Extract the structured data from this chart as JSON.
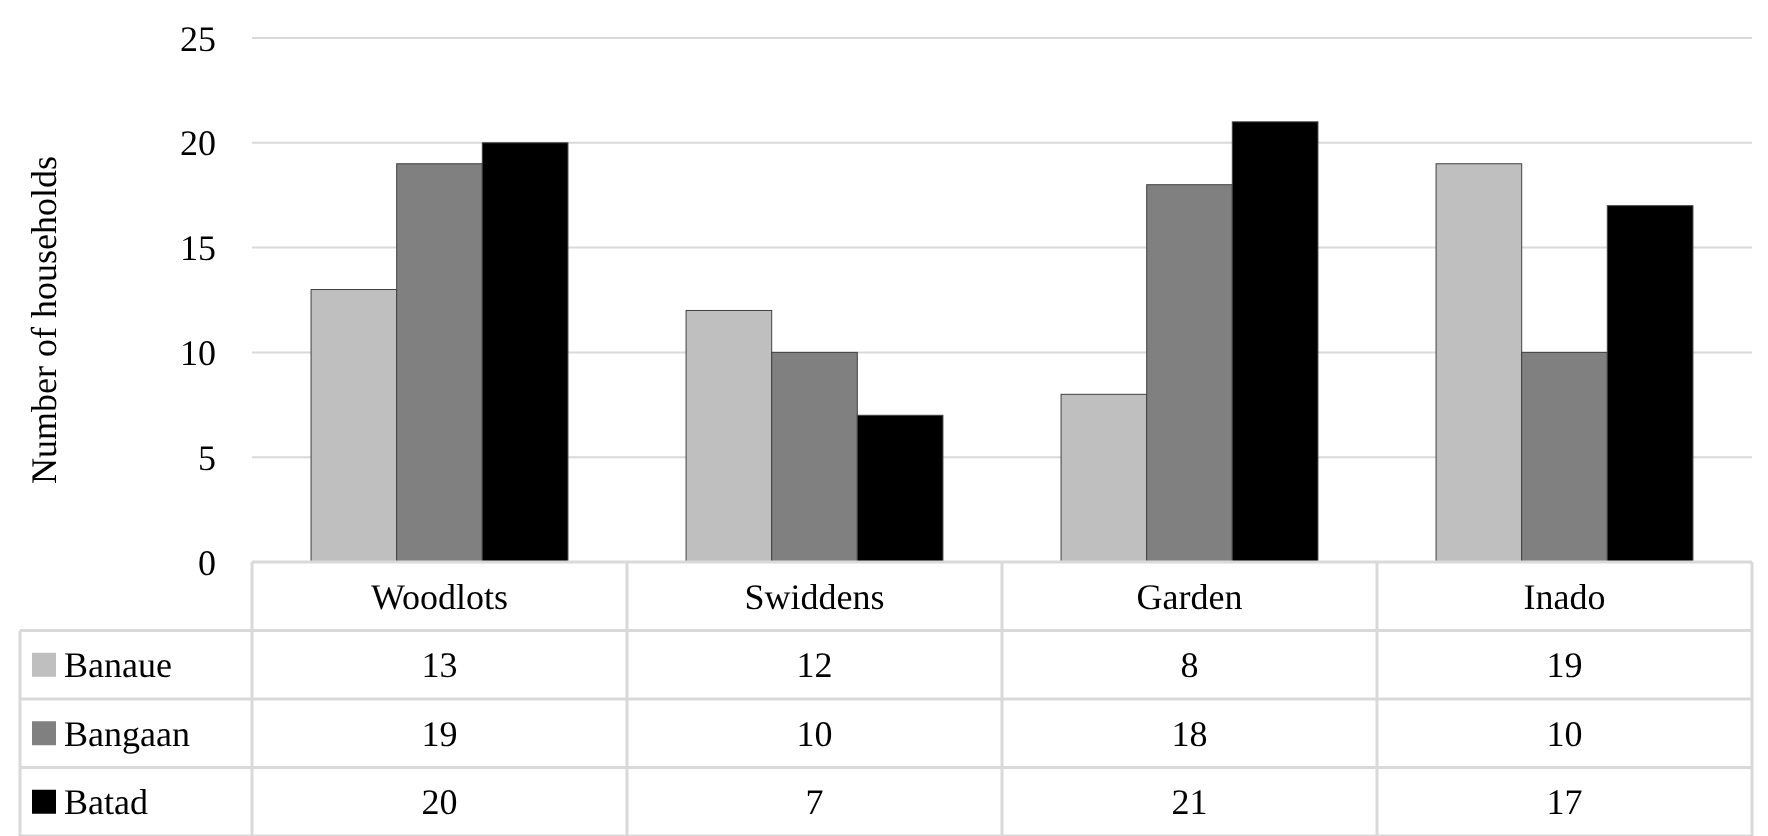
{
  "chart_data": {
    "type": "bar",
    "ylabel": "Number of households",
    "categories": [
      "Woodlots",
      "Swiddens",
      "Garden",
      "Inado"
    ],
    "series": [
      {
        "name": "Banaue",
        "color": "#bfbfbf",
        "values": [
          13,
          12,
          8,
          19
        ]
      },
      {
        "name": "Bangaan",
        "color": "#808080",
        "values": [
          19,
          10,
          18,
          10
        ]
      },
      {
        "name": "Batad",
        "color": "#000000",
        "values": [
          20,
          7,
          21,
          17
        ]
      }
    ],
    "ylim": [
      0,
      25
    ],
    "yticks": [
      0,
      5,
      10,
      15,
      20,
      25
    ],
    "grid": "y",
    "legend": "bottom",
    "data_labels": true
  }
}
